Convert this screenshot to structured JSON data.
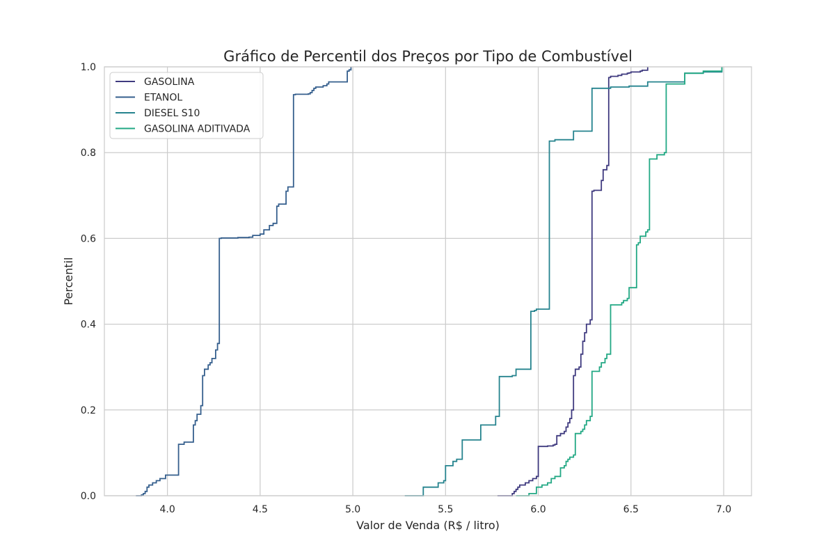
{
  "chart_data": {
    "type": "line",
    "step": true,
    "title": "Gráfico de Percentil dos Preços por Tipo de Combustível",
    "xlabel": "Valor de Venda (R$ / litro)",
    "ylabel": "Percentil",
    "xlim": [
      3.66,
      7.15
    ],
    "ylim": [
      0.0,
      1.0
    ],
    "xticks": [
      4.0,
      4.5,
      5.0,
      5.5,
      6.0,
      6.5,
      7.0
    ],
    "xtick_labels": [
      "4.0",
      "4.5",
      "5.0",
      "5.5",
      "6.0",
      "6.5",
      "7.0"
    ],
    "yticks": [
      0.0,
      0.2,
      0.4,
      0.6,
      0.8,
      1.0
    ],
    "ytick_labels": [
      "0.0",
      "0.2",
      "0.4",
      "0.6",
      "0.8",
      "1.0"
    ],
    "grid": true,
    "legend_position": "upper-left",
    "series": [
      {
        "name": "GASOLINA",
        "color": "#3f3a7f",
        "x": [
          5.78,
          5.86,
          5.87,
          5.88,
          5.89,
          5.9,
          5.93,
          5.95,
          5.97,
          5.99,
          6.0,
          6.05,
          6.08,
          6.09,
          6.1,
          6.12,
          6.14,
          6.15,
          6.16,
          6.17,
          6.18,
          6.19,
          6.2,
          6.22,
          6.23,
          6.24,
          6.25,
          6.26,
          6.28,
          6.29,
          6.3,
          6.34,
          6.35,
          6.37,
          6.38,
          6.39,
          6.43,
          6.45,
          6.48,
          6.49,
          6.5,
          6.55,
          6.56,
          6.59
        ],
        "y": [
          0.0,
          0.005,
          0.01,
          0.015,
          0.02,
          0.025,
          0.03,
          0.035,
          0.04,
          0.045,
          0.115,
          0.116,
          0.118,
          0.12,
          0.14,
          0.145,
          0.15,
          0.16,
          0.17,
          0.18,
          0.2,
          0.28,
          0.295,
          0.3,
          0.33,
          0.36,
          0.38,
          0.4,
          0.41,
          0.71,
          0.712,
          0.735,
          0.76,
          0.77,
          0.975,
          0.978,
          0.98,
          0.983,
          0.985,
          0.986,
          0.988,
          0.99,
          0.992,
          1.0
        ]
      },
      {
        "name": "ETANOL",
        "color": "#355f8d",
        "x": [
          3.83,
          3.86,
          3.87,
          3.88,
          3.89,
          3.9,
          3.92,
          3.94,
          3.96,
          3.99,
          4.06,
          4.09,
          4.14,
          4.15,
          4.16,
          4.18,
          4.19,
          4.2,
          4.22,
          4.23,
          4.24,
          4.26,
          4.27,
          4.28,
          4.29,
          4.38,
          4.44,
          4.46,
          4.5,
          4.52,
          4.55,
          4.57,
          4.59,
          4.6,
          4.64,
          4.65,
          4.68,
          4.69,
          4.76,
          4.77,
          4.78,
          4.79,
          4.8,
          4.84,
          4.86,
          4.87,
          4.97,
          4.98,
          4.99
        ],
        "y": [
          0.0,
          0.002,
          0.005,
          0.01,
          0.02,
          0.025,
          0.03,
          0.035,
          0.04,
          0.048,
          0.12,
          0.125,
          0.165,
          0.175,
          0.19,
          0.21,
          0.28,
          0.295,
          0.305,
          0.31,
          0.32,
          0.34,
          0.355,
          0.6,
          0.601,
          0.602,
          0.603,
          0.607,
          0.61,
          0.62,
          0.63,
          0.635,
          0.675,
          0.68,
          0.71,
          0.72,
          0.935,
          0.936,
          0.937,
          0.94,
          0.945,
          0.95,
          0.953,
          0.956,
          0.96,
          0.965,
          0.99,
          0.993,
          1.0
        ]
      },
      {
        "name": "DIESEL S10",
        "color": "#25838e",
        "x": [
          5.28,
          5.38,
          5.46,
          5.49,
          5.5,
          5.54,
          5.56,
          5.59,
          5.69,
          5.77,
          5.79,
          5.86,
          5.88,
          5.96,
          5.98,
          5.99,
          6.06,
          6.09,
          6.19,
          6.29,
          6.39,
          6.49,
          6.59,
          6.79,
          6.89,
          6.99
        ],
        "y": [
          0.0,
          0.02,
          0.03,
          0.035,
          0.07,
          0.08,
          0.085,
          0.13,
          0.165,
          0.185,
          0.278,
          0.28,
          0.295,
          0.43,
          0.432,
          0.435,
          0.827,
          0.83,
          0.85,
          0.95,
          0.953,
          0.955,
          0.965,
          0.985,
          0.988,
          1.0
        ]
      },
      {
        "name": "GASOLINA ADITIVADA",
        "color": "#22a884",
        "x": [
          5.88,
          5.95,
          5.99,
          6.02,
          6.05,
          6.07,
          6.09,
          6.12,
          6.14,
          6.15,
          6.16,
          6.17,
          6.19,
          6.2,
          6.23,
          6.24,
          6.25,
          6.26,
          6.28,
          6.29,
          6.33,
          6.34,
          6.36,
          6.37,
          6.39,
          6.45,
          6.46,
          6.48,
          6.49,
          6.53,
          6.54,
          6.55,
          6.58,
          6.59,
          6.6,
          6.64,
          6.68,
          6.69,
          6.79,
          6.89,
          6.99
        ],
        "y": [
          0.0,
          0.005,
          0.02,
          0.025,
          0.03,
          0.04,
          0.045,
          0.065,
          0.07,
          0.08,
          0.085,
          0.09,
          0.095,
          0.145,
          0.15,
          0.155,
          0.165,
          0.175,
          0.185,
          0.29,
          0.3,
          0.31,
          0.32,
          0.33,
          0.445,
          0.45,
          0.455,
          0.46,
          0.485,
          0.585,
          0.59,
          0.605,
          0.615,
          0.62,
          0.785,
          0.795,
          0.8,
          0.96,
          0.985,
          0.99,
          1.0
        ]
      }
    ]
  }
}
